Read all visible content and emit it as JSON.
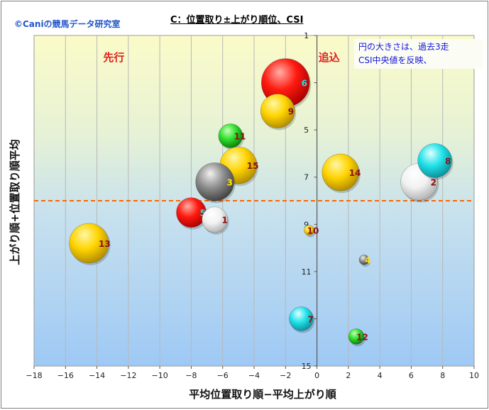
{
  "header": {
    "credit": "©Caniの競馬データ研究室",
    "title": "C：位置取り±上がり順位、CSI"
  },
  "note_lines": [
    "円の大きさは、過去3走",
    "CSI中央値を反映、"
  ],
  "colors": {
    "red": "#ff1010",
    "yellow": "#ffd000",
    "green": "#22dd22",
    "gray": "#8a8a8a",
    "white": "#f4f4f4",
    "cyan": "#20e0e8",
    "dashed_line": "#ff6600",
    "region_label": "#e02020"
  },
  "chart_data": {
    "type": "scatter",
    "title": "C：位置取り±上がり順位、CSI",
    "xlabel": "平均位置取り順−平均上がり順",
    "ylabel": "上がり順+位置取り順平均",
    "xlim": [
      -18,
      10
    ],
    "ylim": [
      1,
      15
    ],
    "y_inverted": true,
    "x_ticks": [
      "−18",
      "−16",
      "−14",
      "−12",
      "−10",
      "−8",
      "−6",
      "−4",
      "−2",
      "0",
      "2",
      "4",
      "6",
      "8",
      "10"
    ],
    "y_ticks": [
      "1",
      "3",
      "5",
      "7",
      "9",
      "11",
      "13",
      "15"
    ],
    "grid": "vertical",
    "reference_line_y": 8,
    "region_labels": [
      {
        "text": "先行",
        "x": -13.6,
        "y": 1.9
      },
      {
        "text": "追込",
        "x": 0.1,
        "y": 1.9
      }
    ],
    "points": [
      {
        "label": "6",
        "x": -2.0,
        "y": 3.0,
        "size": 34,
        "color": "red",
        "label_color": "cyan"
      },
      {
        "label": "9",
        "x": -2.5,
        "y": 4.2,
        "size": 24,
        "color": "yellow",
        "label_color": "darkred"
      },
      {
        "label": "11",
        "x": -5.5,
        "y": 5.25,
        "size": 17,
        "color": "green",
        "label_color": "darkred"
      },
      {
        "label": "15",
        "x": -5.0,
        "y": 6.5,
        "size": 26,
        "color": "yellow",
        "label_color": "darkred"
      },
      {
        "label": "3",
        "x": -6.5,
        "y": 7.2,
        "size": 27,
        "color": "gray",
        "label_color": "yellow"
      },
      {
        "label": "5",
        "x": -8.0,
        "y": 8.5,
        "size": 21,
        "color": "red",
        "label_color": "cyan"
      },
      {
        "label": "1",
        "x": -6.5,
        "y": 8.8,
        "size": 18,
        "color": "white",
        "label_color": "darkred"
      },
      {
        "label": "13",
        "x": -14.5,
        "y": 9.8,
        "size": 28,
        "color": "yellow",
        "label_color": "darkred"
      },
      {
        "label": "14",
        "x": 1.5,
        "y": 6.8,
        "size": 26,
        "color": "yellow",
        "label_color": "darkred"
      },
      {
        "label": "2",
        "x": 6.5,
        "y": 7.2,
        "size": 26,
        "color": "white",
        "label_color": "darkred"
      },
      {
        "label": "8",
        "x": 7.5,
        "y": 6.3,
        "size": 24,
        "color": "cyan",
        "label_color": "darkred"
      },
      {
        "label": "10",
        "x": -0.5,
        "y": 9.25,
        "size": 7,
        "color": "yellow",
        "label_color": "darkred"
      },
      {
        "label": "4",
        "x": 3.0,
        "y": 10.5,
        "size": 7,
        "color": "gray",
        "label_color": "yellow"
      },
      {
        "label": "7",
        "x": -1.0,
        "y": 13.0,
        "size": 17,
        "color": "cyan",
        "label_color": "darkred"
      },
      {
        "label": "12",
        "x": 2.5,
        "y": 13.75,
        "size": 11,
        "color": "green",
        "label_color": "darkred"
      }
    ]
  }
}
